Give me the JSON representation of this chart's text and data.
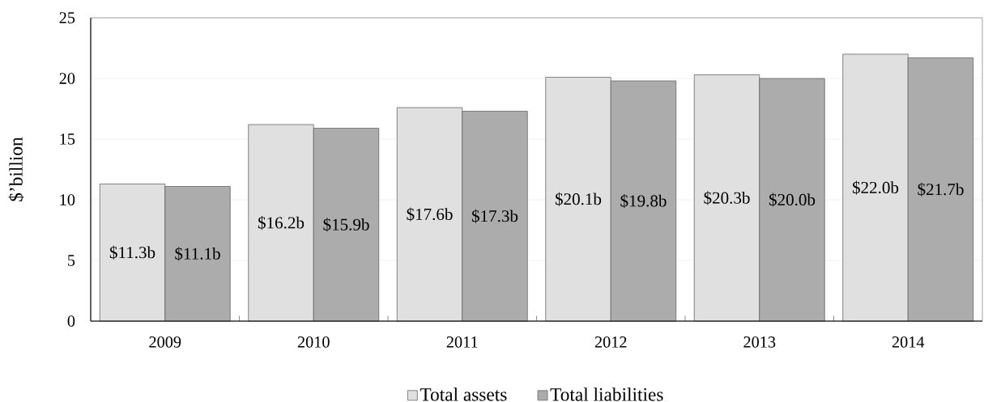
{
  "chart_data": {
    "type": "bar",
    "ylabel": "$’billion",
    "categories": [
      "2009",
      "2010",
      "2011",
      "2012",
      "2013",
      "2014"
    ],
    "series": [
      {
        "name": "Total assets",
        "color": "#e0e0e0",
        "values": [
          11.3,
          16.2,
          17.6,
          20.1,
          20.3,
          22.0
        ],
        "value_labels": [
          "$11.3b",
          "$16.2b",
          "$17.6b",
          "$20.1b",
          "$20.3b",
          "$22.0b"
        ]
      },
      {
        "name": "Total liabilities",
        "color": "#acacac",
        "values": [
          11.1,
          15.9,
          17.3,
          19.8,
          20.0,
          21.7
        ],
        "value_labels": [
          "$11.1b",
          "$15.9b",
          "$17.3b",
          "$19.8b",
          "$20.0b",
          "$21.7b"
        ]
      }
    ],
    "ylim": [
      0,
      25
    ],
    "yticks": [
      0,
      5,
      10,
      15,
      20,
      25
    ],
    "grid": "y",
    "legend": "bottom"
  }
}
